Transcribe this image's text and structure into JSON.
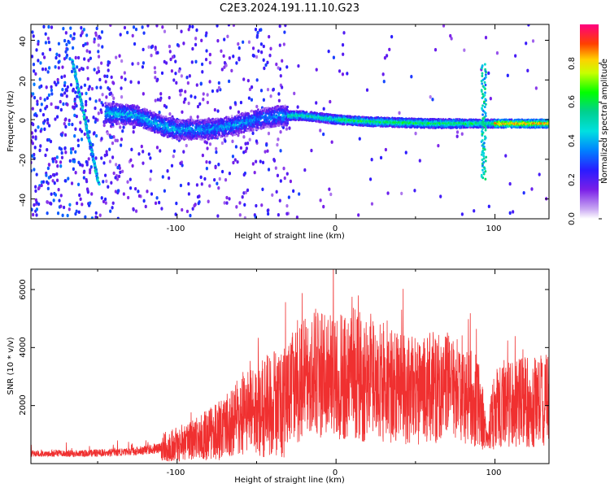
{
  "title": "C2E3.2024.191.11.10.G23",
  "colors": {
    "snr_line": "#f03030",
    "background": "#ffffff",
    "axes": "#000000"
  },
  "chart_data": [
    {
      "type": "heatmap",
      "xlabel": "Height of straight line (km)",
      "ylabel": "Frequency (Hz)",
      "xlim": [
        -192,
        134
      ],
      "ylim": [
        -50,
        48
      ],
      "xticks": [
        "-100",
        "0",
        "100"
      ],
      "yticks": [
        "-40",
        "-20",
        "0",
        "20",
        "40"
      ],
      "colormap": "rainbow",
      "colorbar": {
        "label": "Normalized spectral amplitude",
        "range": [
          0,
          1
        ],
        "ticks": [
          "0.0",
          "0.2",
          "0.4",
          "0.6",
          "0.8"
        ]
      },
      "ridge": [
        [
          -140,
          3
        ],
        [
          -125,
          2
        ],
        [
          -110,
          -3
        ],
        [
          -100,
          -5
        ],
        [
          -80,
          -5
        ],
        [
          -65,
          -3
        ],
        [
          -50,
          0
        ],
        [
          -35,
          2
        ],
        [
          -20,
          2
        ],
        [
          0,
          0
        ],
        [
          20,
          -1
        ],
        [
          40,
          -1.5
        ],
        [
          60,
          -2
        ],
        [
          80,
          -2
        ],
        [
          100,
          -2
        ],
        [
          134,
          -2
        ]
      ]
    },
    {
      "type": "line",
      "xlabel": "Height of straight line (km)",
      "ylabel": "SNR (10 * v/v)",
      "xlim": [
        -192,
        134
      ],
      "ylim": [
        0,
        6700
      ],
      "xticks": [
        "-100",
        "0",
        "100"
      ],
      "yticks": [
        "2000",
        "4000",
        "6000"
      ],
      "series": [
        {
          "envelope_x": [
            -192,
            -160,
            -130,
            -110,
            -90,
            -70,
            -60,
            -50,
            -40,
            -32,
            -28,
            -20,
            -10,
            0,
            10,
            20,
            30,
            40,
            50,
            60,
            70,
            80,
            90,
            95,
            100,
            110,
            120,
            134
          ],
          "envelope_y": [
            350,
            350,
            400,
            550,
            800,
            1200,
            1700,
            1800,
            2100,
            2100,
            2700,
            3000,
            3100,
            2900,
            3100,
            3000,
            2800,
            2600,
            2500,
            2600,
            2600,
            2400,
            2100,
            900,
            2000,
            2100,
            2100,
            2200
          ]
        }
      ]
    }
  ]
}
